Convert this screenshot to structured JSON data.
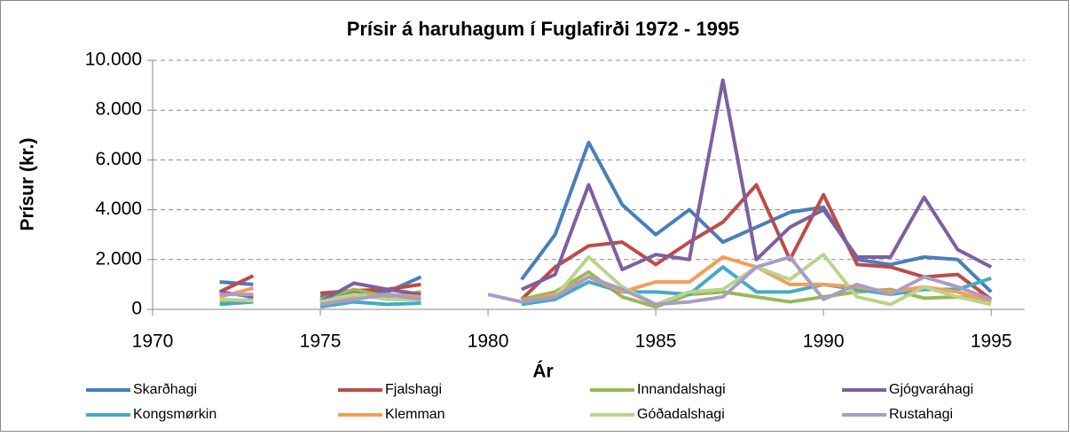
{
  "chart_data": {
    "type": "line",
    "title": "Prísir á haruhagum í Fuglafirði 1972 - 1995",
    "xlabel": "Ár",
    "ylabel": "Prísur (kr.)",
    "x": [
      1972,
      1973,
      1974,
      1975,
      1976,
      1977,
      1978,
      1979,
      1980,
      1981,
      1982,
      1983,
      1984,
      1985,
      1986,
      1987,
      1988,
      1989,
      1990,
      1991,
      1992,
      1993,
      1994,
      1995
    ],
    "xlim": [
      1970,
      1996
    ],
    "xticks": [
      1970,
      1975,
      1980,
      1985,
      1990,
      1995
    ],
    "ylim": [
      0,
      10000
    ],
    "yticks": [
      0,
      {
        "value": 2000,
        "label": "2.000"
      },
      {
        "value": 4000,
        "label": "4.000"
      },
      {
        "value": 6000,
        "label": "6.000"
      },
      {
        "value": 8000,
        "label": "8.000"
      },
      {
        "value": 10000,
        "label": "10.000"
      }
    ],
    "grid": true,
    "legend": "bottom",
    "series": [
      {
        "name": "Skarðhagi",
        "color": "#4a7ebb",
        "values": [
          1100,
          1000,
          null,
          500,
          700,
          700,
          1300,
          null,
          null,
          1200,
          3000,
          6700,
          4200,
          3000,
          4000,
          2700,
          3300,
          3900,
          4100,
          2000,
          1800,
          2100,
          2000,
          700
        ]
      },
      {
        "name": "Fjalshagi",
        "color": "#be4b48",
        "values": [
          700,
          1350,
          null,
          650,
          750,
          800,
          1000,
          null,
          null,
          400,
          1700,
          2550,
          2700,
          1800,
          2700,
          3500,
          5000,
          2000,
          4600,
          1800,
          1700,
          1300,
          1400,
          400
        ]
      },
      {
        "name": "Innandalshagi",
        "color": "#98b954",
        "values": [
          300,
          400,
          null,
          400,
          800,
          500,
          700,
          null,
          null,
          400,
          700,
          1500,
          500,
          100,
          600,
          700,
          500,
          300,
          500,
          700,
          800,
          450,
          500,
          400
        ]
      },
      {
        "name": "Gjógvaráhagi",
        "color": "#7d60a0",
        "values": [
          700,
          500,
          null,
          300,
          1050,
          800,
          600,
          null,
          null,
          800,
          1400,
          5000,
          1600,
          2200,
          2000,
          9200,
          2000,
          3300,
          4000,
          2100,
          2100,
          4500,
          2400,
          1700
        ]
      },
      {
        "name": "Kongsmørkin",
        "color": "#46aac5",
        "values": [
          200,
          300,
          null,
          100,
          300,
          200,
          250,
          null,
          null,
          200,
          400,
          1100,
          700,
          700,
          600,
          1700,
          700,
          700,
          1000,
          800,
          600,
          800,
          800,
          1250
        ]
      },
      {
        "name": "Klemman",
        "color": "#f59d56",
        "values": [
          500,
          850,
          null,
          300,
          500,
          600,
          500,
          null,
          null,
          300,
          600,
          1300,
          700,
          1100,
          1100,
          2100,
          1700,
          1000,
          1000,
          900,
          700,
          900,
          700,
          300
        ]
      },
      {
        "name": "Góðadalshagi",
        "color": "#b9d48e",
        "values": [
          400,
          350,
          null,
          300,
          600,
          400,
          400,
          null,
          null,
          300,
          500,
          2100,
          900,
          200,
          700,
          800,
          1700,
          1200,
          2200,
          500,
          200,
          900,
          500,
          200
        ]
      },
      {
        "name": "Rustahagi",
        "color": "#aa9cc6",
        "values": [
          600,
          600,
          null,
          200,
          400,
          600,
          400,
          null,
          600,
          300,
          500,
          1300,
          800,
          200,
          300,
          500,
          1700,
          2100,
          400,
          1000,
          600,
          1300,
          900,
          400
        ]
      }
    ]
  }
}
